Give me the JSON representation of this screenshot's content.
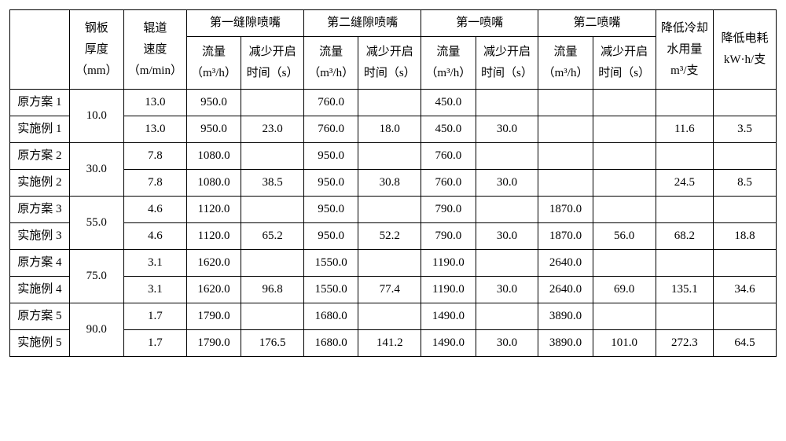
{
  "table": {
    "colors": {
      "border": "#000000",
      "bg": "#ffffff",
      "text": "#000000"
    },
    "font_size_pt": 11,
    "header": {
      "row_label_blank": "",
      "thickness": "钢板\n厚度\n（mm）",
      "speed": "辊道\n速度\n（m/min）",
      "group1": "第一缝隙喷嘴",
      "group2": "第二缝隙喷嘴",
      "group3": "第一喷嘴",
      "group4": "第二喷嘴",
      "flow": "流量\n（m³/h）",
      "time": "减少开启\n时间（s）",
      "water": "降低冷却\n水用量\nm³/支",
      "power": "降低电耗\nkW·h/支"
    },
    "groups": [
      {
        "thickness": "10.0",
        "rows": [
          {
            "label": "原方案 1",
            "speed": "13.0",
            "f1": "950.0",
            "t1": "",
            "f2": "760.0",
            "t2": "",
            "f3": "450.0",
            "t3": "",
            "f4": "",
            "t4": "",
            "water": "",
            "power": ""
          },
          {
            "label": "实施例 1",
            "speed": "13.0",
            "f1": "950.0",
            "t1": "23.0",
            "f2": "760.0",
            "t2": "18.0",
            "f3": "450.0",
            "t3": "30.0",
            "f4": "",
            "t4": "",
            "water": "11.6",
            "power": "3.5"
          }
        ]
      },
      {
        "thickness": "30.0",
        "rows": [
          {
            "label": "原方案 2",
            "speed": "7.8",
            "f1": "1080.0",
            "t1": "",
            "f2": "950.0",
            "t2": "",
            "f3": "760.0",
            "t3": "",
            "f4": "",
            "t4": "",
            "water": "",
            "power": ""
          },
          {
            "label": "实施例 2",
            "speed": "7.8",
            "f1": "1080.0",
            "t1": "38.5",
            "f2": "950.0",
            "t2": "30.8",
            "f3": "760.0",
            "t3": "30.0",
            "f4": "",
            "t4": "",
            "water": "24.5",
            "power": "8.5"
          }
        ]
      },
      {
        "thickness": "55.0",
        "rows": [
          {
            "label": "原方案 3",
            "speed": "4.6",
            "f1": "1120.0",
            "t1": "",
            "f2": "950.0",
            "t2": "",
            "f3": "790.0",
            "t3": "",
            "f4": "1870.0",
            "t4": "",
            "water": "",
            "power": ""
          },
          {
            "label": "实施例 3",
            "speed": "4.6",
            "f1": "1120.0",
            "t1": "65.2",
            "f2": "950.0",
            "t2": "52.2",
            "f3": "790.0",
            "t3": "30.0",
            "f4": "1870.0",
            "t4": "56.0",
            "water": "68.2",
            "power": "18.8"
          }
        ]
      },
      {
        "thickness": "75.0",
        "rows": [
          {
            "label": "原方案 4",
            "speed": "3.1",
            "f1": "1620.0",
            "t1": "",
            "f2": "1550.0",
            "t2": "",
            "f3": "1190.0",
            "t3": "",
            "f4": "2640.0",
            "t4": "",
            "water": "",
            "power": ""
          },
          {
            "label": "实施例 4",
            "speed": "3.1",
            "f1": "1620.0",
            "t1": "96.8",
            "f2": "1550.0",
            "t2": "77.4",
            "f3": "1190.0",
            "t3": "30.0",
            "f4": "2640.0",
            "t4": "69.0",
            "water": "135.1",
            "power": "34.6"
          }
        ]
      },
      {
        "thickness": "90.0",
        "rows": [
          {
            "label": "原方案 5",
            "speed": "1.7",
            "f1": "1790.0",
            "t1": "",
            "f2": "1680.0",
            "t2": "",
            "f3": "1490.0",
            "t3": "",
            "f4": "3890.0",
            "t4": "",
            "water": "",
            "power": ""
          },
          {
            "label": "实施例 5",
            "speed": "1.7",
            "f1": "1790.0",
            "t1": "176.5",
            "f2": "1680.0",
            "t2": "141.2",
            "f3": "1490.0",
            "t3": "30.0",
            "f4": "3890.0",
            "t4": "101.0",
            "water": "272.3",
            "power": "64.5"
          }
        ]
      }
    ]
  }
}
